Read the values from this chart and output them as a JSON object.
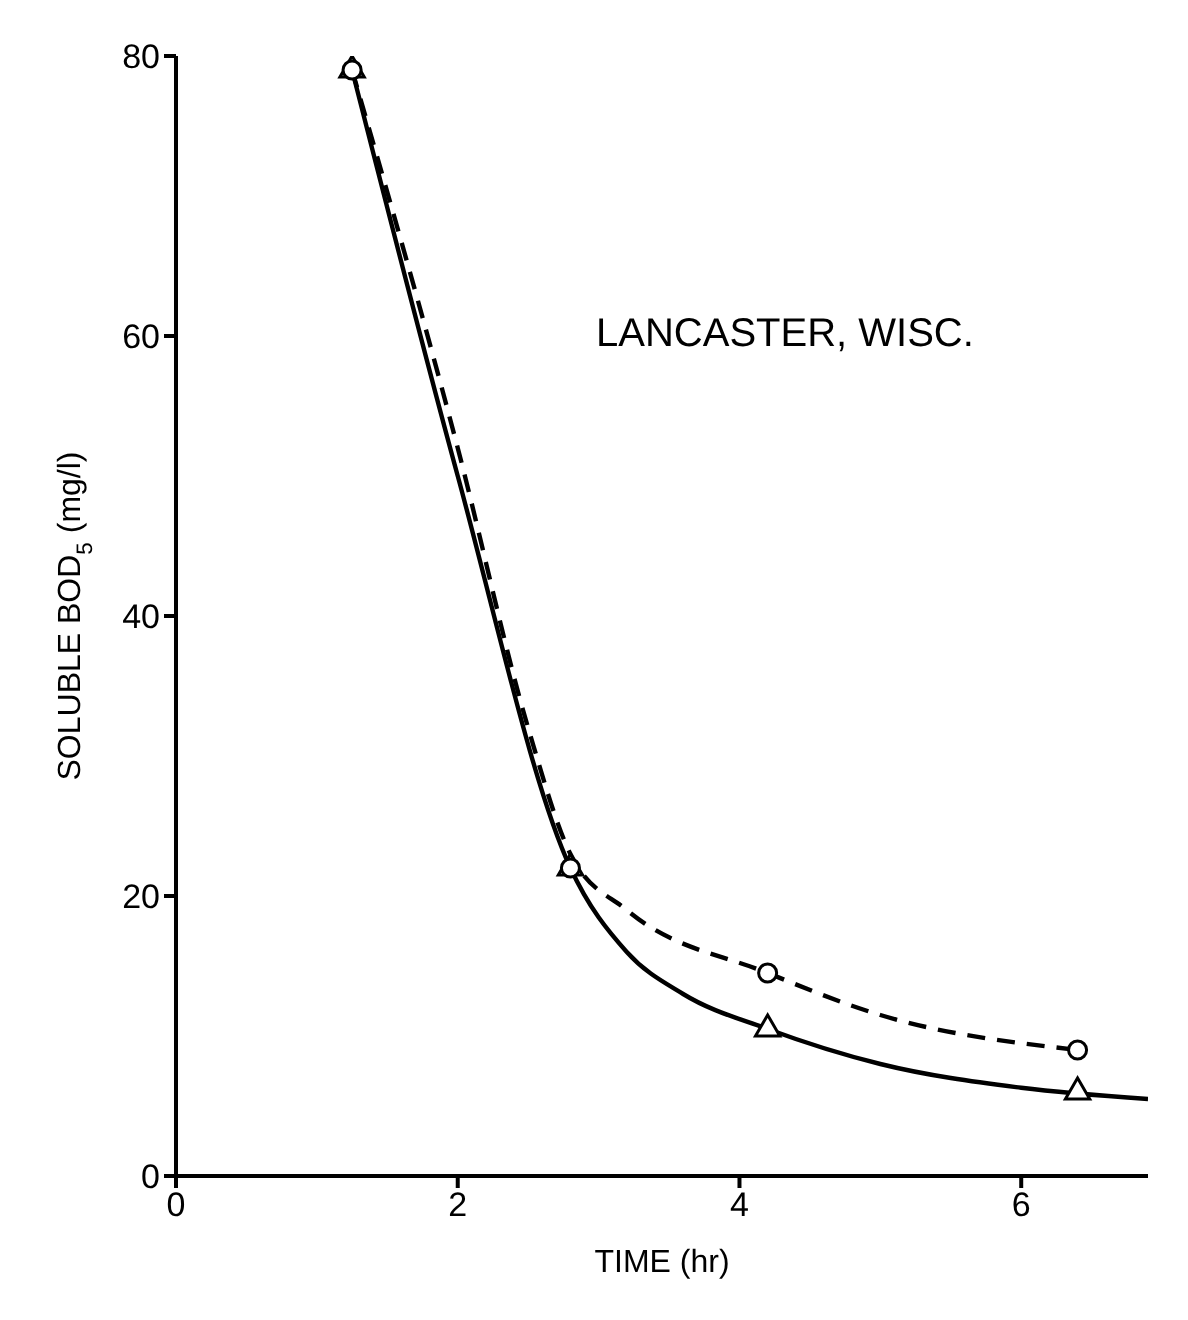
{
  "chart_data": {
    "type": "scatter",
    "xlabel": "TIME (hr)",
    "ylabel": "SOLUBLE BOD$_{5}$ (mg/l)",
    "annotations": [
      "LANCASTER, WISC."
    ],
    "xlim": [
      0,
      6.9
    ],
    "xticks": [
      0,
      2,
      4,
      6
    ],
    "ylim": [
      0,
      80
    ],
    "yticks": [
      0,
      20,
      40,
      60,
      80
    ],
    "grid": false,
    "series": [
      {
        "type": "line",
        "color": "#000000",
        "line_style": "solid",
        "marker": "none",
        "x": [
          1.25,
          2.0,
          2.8,
          3.2,
          3.6,
          4.2,
          5.0,
          6.0,
          6.9
        ],
        "values": [
          79,
          50,
          22,
          16,
          13,
          10.5,
          8,
          6.3,
          5.5
        ]
      },
      {
        "type": "line",
        "color": "#000000",
        "line_style": "dashed",
        "marker": "none",
        "x": [
          1.25,
          2.0,
          2.5,
          2.8,
          3.2,
          4.2,
          5.0,
          6.4
        ],
        "values": [
          79,
          52,
          32,
          23,
          19,
          14.5,
          11.5,
          9
        ]
      },
      {
        "color": "#000000",
        "marker": "triangle",
        "x": [
          1.25,
          2.8,
          4.2,
          6.4
        ],
        "values": [
          79,
          22,
          10.5,
          6
        ]
      },
      {
        "color": "#000000",
        "marker": "circle",
        "x": [
          1.25,
          2.8,
          4.2,
          6.4
        ],
        "values": [
          79,
          22,
          14.5,
          9
        ]
      }
    ]
  }
}
